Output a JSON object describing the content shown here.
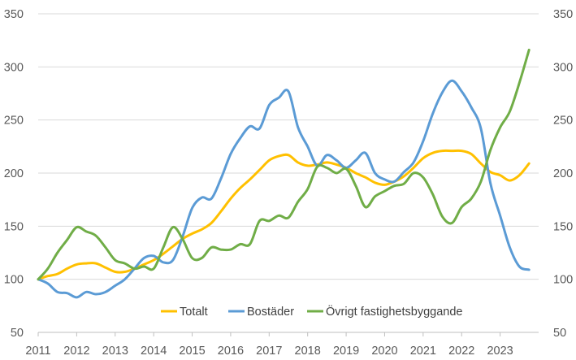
{
  "chart_data": {
    "type": "line",
    "title": "",
    "xlabel": "",
    "ylabel": "",
    "xlim": [
      2011,
      2024
    ],
    "ylim": [
      50,
      350
    ],
    "x_ticks": [
      "2011",
      "2012",
      "2013",
      "2014",
      "2015",
      "2016",
      "2017",
      "2018",
      "2019",
      "2020",
      "2021",
      "2022",
      "2023"
    ],
    "y_ticks": [
      "50",
      "100",
      "150",
      "200",
      "250",
      "300",
      "350"
    ],
    "secondary_y_ticks": [
      "50",
      "100",
      "150",
      "200",
      "250",
      "300",
      "350"
    ],
    "grid": "horizontal",
    "legend_position": "bottom",
    "series": [
      {
        "name": "Totalt",
        "color": "#FFC000",
        "x": [
          2011.0,
          2011.25,
          2011.5,
          2011.75,
          2012.0,
          2012.25,
          2012.5,
          2012.75,
          2013.0,
          2013.25,
          2013.5,
          2013.75,
          2014.0,
          2014.25,
          2014.5,
          2014.75,
          2015.0,
          2015.25,
          2015.5,
          2015.75,
          2016.0,
          2016.25,
          2016.5,
          2016.75,
          2017.0,
          2017.25,
          2017.5,
          2017.75,
          2018.0,
          2018.25,
          2018.5,
          2018.75,
          2019.0,
          2019.25,
          2019.5,
          2019.75,
          2020.0,
          2020.25,
          2020.5,
          2020.75,
          2021.0,
          2021.25,
          2021.5,
          2021.75,
          2022.0,
          2022.25,
          2022.5,
          2022.75,
          2023.0,
          2023.25,
          2023.5,
          2023.75
        ],
        "y": [
          100,
          103,
          105,
          110,
          114,
          115,
          115,
          111,
          107,
          107,
          110,
          114,
          118,
          124,
          131,
          138,
          143,
          147,
          153,
          164,
          176,
          186,
          194,
          203,
          212,
          216,
          217,
          210,
          207,
          208,
          210,
          208,
          205,
          200,
          196,
          191,
          189,
          192,
          197,
          205,
          214,
          219,
          221,
          221,
          221,
          218,
          209,
          201,
          198,
          193,
          198,
          209
        ]
      },
      {
        "name": "Bostäder",
        "color": "#5B9BD5",
        "x": [
          2011.0,
          2011.25,
          2011.5,
          2011.75,
          2012.0,
          2012.25,
          2012.5,
          2012.75,
          2013.0,
          2013.25,
          2013.5,
          2013.75,
          2014.0,
          2014.25,
          2014.5,
          2014.75,
          2015.0,
          2015.25,
          2015.5,
          2015.75,
          2016.0,
          2016.25,
          2016.5,
          2016.75,
          2017.0,
          2017.25,
          2017.5,
          2017.75,
          2018.0,
          2018.25,
          2018.5,
          2018.75,
          2019.0,
          2019.25,
          2019.5,
          2019.75,
          2020.0,
          2020.25,
          2020.5,
          2020.75,
          2021.0,
          2021.25,
          2021.5,
          2021.75,
          2022.0,
          2022.25,
          2022.5,
          2022.75,
          2023.0,
          2023.25,
          2023.5,
          2023.75
        ],
        "y": [
          100,
          96,
          88,
          87,
          83,
          88,
          86,
          88,
          94,
          100,
          110,
          120,
          122,
          116,
          118,
          140,
          167,
          177,
          176,
          195,
          218,
          233,
          244,
          242,
          264,
          271,
          277,
          243,
          225,
          207,
          217,
          212,
          205,
          212,
          219,
          200,
          194,
          192,
          201,
          210,
          230,
          256,
          276,
          287,
          277,
          262,
          242,
          190,
          160,
          130,
          112,
          109
        ]
      },
      {
        "name": "Övrigt fastighetsbyggande",
        "color": "#70AD47",
        "x": [
          2011.0,
          2011.25,
          2011.5,
          2011.75,
          2012.0,
          2012.25,
          2012.5,
          2012.75,
          2013.0,
          2013.25,
          2013.5,
          2013.75,
          2014.0,
          2014.25,
          2014.5,
          2014.75,
          2015.0,
          2015.25,
          2015.5,
          2015.75,
          2016.0,
          2016.25,
          2016.5,
          2016.75,
          2017.0,
          2017.25,
          2017.5,
          2017.75,
          2018.0,
          2018.25,
          2018.5,
          2018.75,
          2019.0,
          2019.25,
          2019.5,
          2019.75,
          2020.0,
          2020.25,
          2020.5,
          2020.75,
          2021.0,
          2021.25,
          2021.5,
          2021.75,
          2022.0,
          2022.25,
          2022.5,
          2022.75,
          2023.0,
          2023.25,
          2023.5,
          2023.75
        ],
        "y": [
          100,
          110,
          125,
          137,
          149,
          145,
          141,
          130,
          118,
          115,
          110,
          112,
          110,
          130,
          149,
          138,
          120,
          120,
          130,
          128,
          128,
          133,
          133,
          155,
          155,
          160,
          158,
          173,
          185,
          206,
          205,
          200,
          204,
          188,
          168,
          178,
          183,
          188,
          190,
          200,
          196,
          180,
          159,
          153,
          168,
          176,
          192,
          222,
          243,
          258,
          285,
          316
        ]
      }
    ]
  }
}
